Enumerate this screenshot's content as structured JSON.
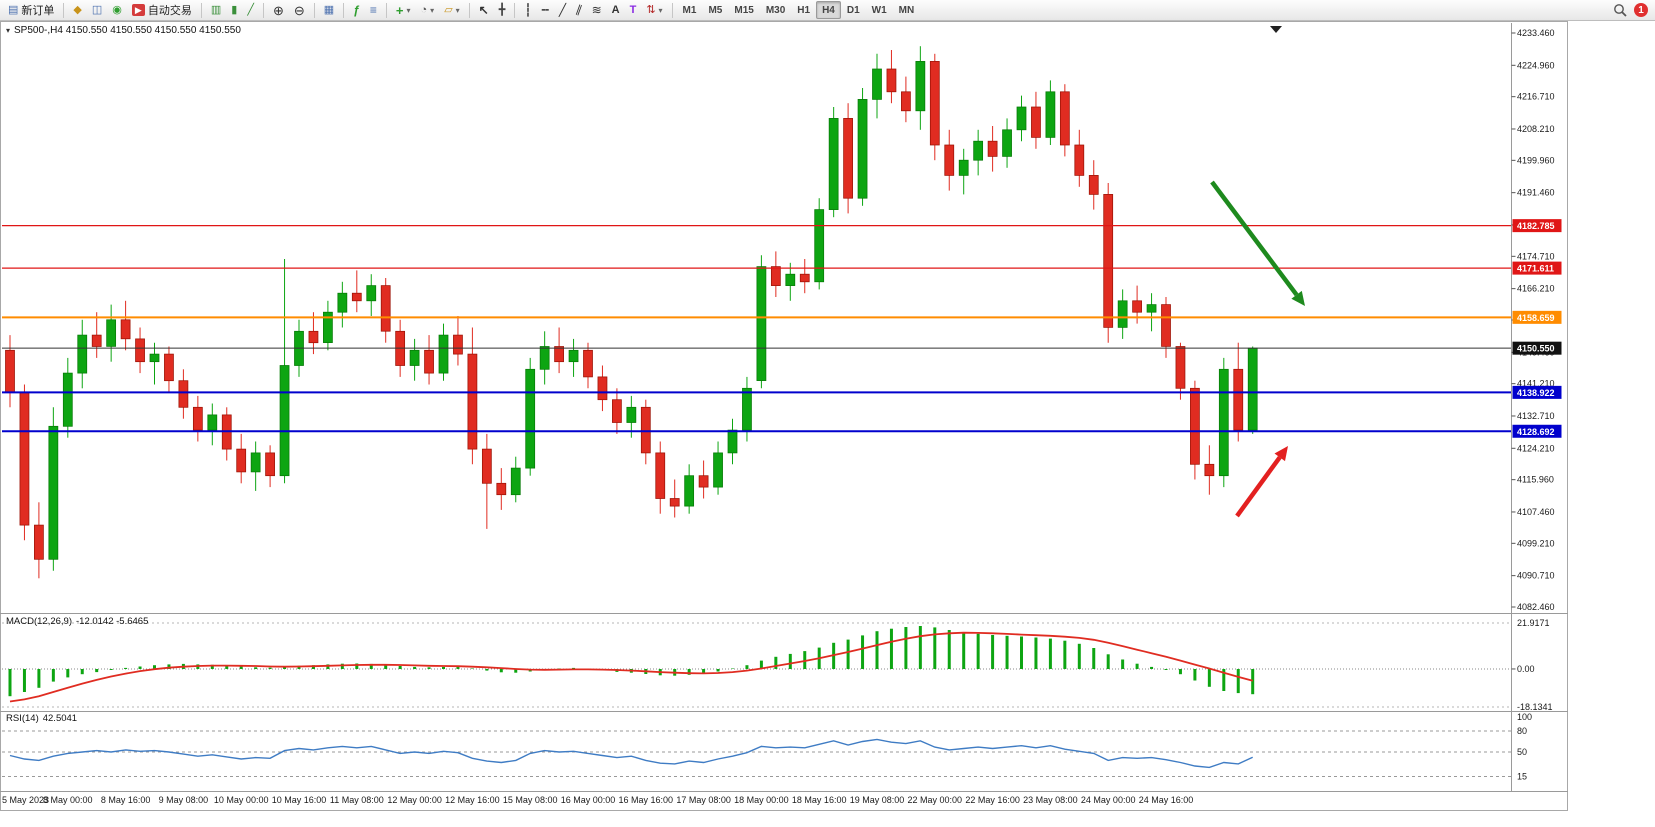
{
  "app": {
    "notification_count": "1"
  },
  "toolbar": {
    "groups": [
      {
        "buttons": [
          {
            "name": "new-order-button",
            "icon": "order-icon",
            "label": "新订单"
          }
        ]
      },
      {
        "buttons": [
          {
            "name": "new-chart-button",
            "icon": "new-chart-icon"
          },
          {
            "name": "profiles-button",
            "icon": "profiles-icon"
          },
          {
            "name": "alerts-button",
            "icon": "alerts-icon"
          },
          {
            "name": "autotrading-button",
            "icon": "autotrading-icon",
            "label": "自动交易"
          }
        ]
      },
      {
        "buttons": [
          {
            "name": "bar-chart-button",
            "icon": "ohlc-bars-icon"
          },
          {
            "name": "candlestick-chart-button",
            "icon": "candles-icon"
          },
          {
            "name": "line-chart-button",
            "icon": "line-chart-icon"
          }
        ]
      },
      {
        "buttons": [
          {
            "name": "zoom-in-button",
            "icon": "zoom-in-icon"
          },
          {
            "name": "zoom-out-button",
            "icon": "zoom-out-icon"
          }
        ]
      },
      {
        "buttons": [
          {
            "name": "tile-windows-button",
            "icon": "tile-windows-icon"
          }
        ]
      },
      {
        "buttons": [
          {
            "name": "indicators-button",
            "icon": "indicators-icon"
          },
          {
            "name": "objects-list-button",
            "icon": "objects-list-icon"
          }
        ]
      },
      {
        "buttons": [
          {
            "name": "add-indicator-button",
            "icon": "plus-icon",
            "caret": true
          },
          {
            "name": "periods-button",
            "icon": "clock-icon",
            "caret": true
          },
          {
            "name": "templates-button",
            "icon": "template-icon",
            "caret": true
          }
        ]
      },
      {
        "buttons": [
          {
            "name": "cursor-button",
            "icon": "cursor-icon"
          },
          {
            "name": "crosshair-button",
            "icon": "crosshair-icon"
          }
        ]
      },
      {
        "buttons": [
          {
            "name": "vertical-line-button",
            "icon": "vertical-line-icon"
          },
          {
            "name": "horizontal-line-button",
            "icon": "horizontal-line-icon"
          },
          {
            "name": "trendline-button",
            "icon": "trendline-icon"
          },
          {
            "name": "channel-button",
            "icon": "channel-icon"
          },
          {
            "name": "fibonacci-button",
            "icon": "fibonacci-icon"
          },
          {
            "name": "text-button",
            "icon": "text-icon"
          },
          {
            "name": "label-button",
            "icon": "label-icon"
          },
          {
            "name": "arrows-button",
            "icon": "arrow-objects-icon",
            "caret": true
          }
        ]
      },
      {
        "buttons": [
          {
            "name": "timeframe-m1",
            "label": "M1"
          },
          {
            "name": "timeframe-m5",
            "label": "M5"
          },
          {
            "name": "timeframe-m15",
            "label": "M15"
          },
          {
            "name": "timeframe-m30",
            "label": "M30"
          },
          {
            "name": "timeframe-h1",
            "label": "H1"
          },
          {
            "name": "timeframe-h4",
            "label": "H4",
            "active": true
          },
          {
            "name": "timeframe-d1",
            "label": "D1"
          },
          {
            "name": "timeframe-w1",
            "label": "W1"
          },
          {
            "name": "timeframe-mn",
            "label": "MN"
          }
        ]
      }
    ]
  },
  "chart": {
    "title": "SP500-,H4  4150.550 4150.550 4150.550 4150.550",
    "symbol": "SP500-",
    "timeframe": "H4",
    "price_scale_labels": [
      "4233.460",
      "4224.960",
      "4216.710",
      "4208.210",
      "4199.960",
      "4191.460",
      "4182.960",
      "4174.710",
      "4166.210",
      "4157.960",
      "4149.460",
      "4141.210",
      "4132.710",
      "4124.210",
      "4115.960",
      "4107.460",
      "4099.210",
      "4090.710",
      "4082.460"
    ],
    "price_lines": [
      {
        "value": 4182.785,
        "label": "4182.785",
        "color": "#e01616",
        "width": 1.2
      },
      {
        "value": 4171.611,
        "label": "4171.611",
        "color": "#e01616",
        "width": 1.2
      },
      {
        "value": 4158.659,
        "label": "4158.659",
        "color": "#ff8c00",
        "width": 2
      },
      {
        "value": 4150.55,
        "label": "4150.550",
        "color": "#333333",
        "badge": "#111111",
        "width": 1
      },
      {
        "value": 4138.922,
        "label": "4138.922",
        "color": "#0000cd",
        "width": 2
      },
      {
        "value": 4128.692,
        "label": "4128.692",
        "color": "#0000cd",
        "width": 2
      }
    ],
    "arrows": [
      {
        "name": "bearish-trend-arrow",
        "color": "#1e8a1e",
        "from": [
          1212,
          161
        ],
        "to": [
          1305,
          285
        ]
      },
      {
        "name": "bullish-bounce-arrow",
        "color": "#e32020",
        "from": [
          1237,
          495
        ],
        "to": [
          1288,
          425
        ]
      }
    ],
    "time_labels": [
      "5 May 2023",
      "8 May 00:00",
      "8 May 16:00",
      "9 May 08:00",
      "10 May 00:00",
      "10 May 16:00",
      "11 May 08:00",
      "12 May 00:00",
      "12 May 16:00",
      "15 May 08:00",
      "16 May 00:00",
      "16 May 16:00",
      "17 May 08:00",
      "18 May 00:00",
      "18 May 16:00",
      "19 May 08:00",
      "22 May 00:00",
      "22 May 16:00",
      "23 May 08:00",
      "24 May 00:00",
      "24 May 16:00"
    ]
  },
  "chart_data": {
    "type": "candlestick",
    "symbol": "SP500-",
    "period": "H4",
    "ylim": [
      4082.46,
      4233.46
    ],
    "up_color": "#0da512",
    "down_color": "#e02c21",
    "ohlc": [
      [
        4150,
        4154,
        4135,
        4139
      ],
      [
        4139,
        4141,
        4100,
        4104
      ],
      [
        4104,
        4110,
        4090,
        4095
      ],
      [
        4095,
        4135,
        4092,
        4130
      ],
      [
        4130,
        4148,
        4127,
        4144
      ],
      [
        4144,
        4158,
        4140,
        4154
      ],
      [
        4154,
        4160,
        4148,
        4151
      ],
      [
        4151,
        4162,
        4147,
        4158
      ],
      [
        4158,
        4163,
        4150,
        4153
      ],
      [
        4153,
        4156,
        4144,
        4147
      ],
      [
        4147,
        4152,
        4141,
        4149
      ],
      [
        4149,
        4151,
        4139,
        4142
      ],
      [
        4142,
        4145,
        4132,
        4135
      ],
      [
        4135,
        4138,
        4126,
        4129
      ],
      [
        4129,
        4136,
        4125,
        4133
      ],
      [
        4133,
        4135,
        4121,
        4124
      ],
      [
        4124,
        4128,
        4115,
        4118
      ],
      [
        4118,
        4126,
        4113,
        4123
      ],
      [
        4123,
        4125,
        4114,
        4117
      ],
      [
        4117,
        4174,
        4115,
        4146
      ],
      [
        4146,
        4158,
        4143,
        4155
      ],
      [
        4155,
        4160,
        4149,
        4152
      ],
      [
        4152,
        4163,
        4150,
        4160
      ],
      [
        4160,
        4168,
        4156,
        4165
      ],
      [
        4165,
        4171,
        4160,
        4163
      ],
      [
        4163,
        4170,
        4159,
        4167
      ],
      [
        4167,
        4169,
        4152,
        4155
      ],
      [
        4155,
        4158,
        4143,
        4146
      ],
      [
        4146,
        4153,
        4142,
        4150
      ],
      [
        4150,
        4154,
        4141,
        4144
      ],
      [
        4144,
        4157,
        4142,
        4154
      ],
      [
        4154,
        4159,
        4146,
        4149
      ],
      [
        4149,
        4156,
        4120,
        4124
      ],
      [
        4124,
        4128,
        4103,
        4115
      ],
      [
        4115,
        4119,
        4108,
        4112
      ],
      [
        4112,
        4122,
        4110,
        4119
      ],
      [
        4119,
        4148,
        4117,
        4145
      ],
      [
        4145,
        4155,
        4141,
        4151
      ],
      [
        4151,
        4156,
        4144,
        4147
      ],
      [
        4147,
        4153,
        4143,
        4150
      ],
      [
        4150,
        4152,
        4140,
        4143
      ],
      [
        4143,
        4146,
        4134,
        4137
      ],
      [
        4137,
        4140,
        4128,
        4131
      ],
      [
        4131,
        4138,
        4127,
        4135
      ],
      [
        4135,
        4137,
        4120,
        4123
      ],
      [
        4123,
        4126,
        4107,
        4111
      ],
      [
        4111,
        4116,
        4106,
        4109
      ],
      [
        4109,
        4120,
        4107,
        4117
      ],
      [
        4117,
        4121,
        4111,
        4114
      ],
      [
        4114,
        4126,
        4112,
        4123
      ],
      [
        4123,
        4132,
        4120,
        4129
      ],
      [
        4129,
        4143,
        4126,
        4140
      ],
      [
        4142,
        4175,
        4140,
        4172
      ],
      [
        4172,
        4176,
        4164,
        4167
      ],
      [
        4167,
        4173,
        4163,
        4170
      ],
      [
        4170,
        4174,
        4165,
        4168
      ],
      [
        4168,
        4190,
        4166,
        4187
      ],
      [
        4187,
        4214,
        4185,
        4211
      ],
      [
        4211,
        4215,
        4186,
        4190
      ],
      [
        4190,
        4219,
        4188,
        4216
      ],
      [
        4216,
        4228,
        4211,
        4224
      ],
      [
        4224,
        4229,
        4215,
        4218
      ],
      [
        4218,
        4222,
        4210,
        4213
      ],
      [
        4213,
        4230,
        4208,
        4226
      ],
      [
        4226,
        4228,
        4200,
        4204
      ],
      [
        4204,
        4208,
        4192,
        4196
      ],
      [
        4196,
        4203,
        4191,
        4200
      ],
      [
        4200,
        4208,
        4196,
        4205
      ],
      [
        4205,
        4209,
        4197,
        4201
      ],
      [
        4201,
        4211,
        4198,
        4208
      ],
      [
        4208,
        4217,
        4205,
        4214
      ],
      [
        4214,
        4218,
        4203,
        4206
      ],
      [
        4206,
        4221,
        4204,
        4218
      ],
      [
        4218,
        4220,
        4201,
        4204
      ],
      [
        4204,
        4208,
        4193,
        4196
      ],
      [
        4196,
        4200,
        4187,
        4191
      ],
      [
        4191,
        4194,
        4152,
        4156
      ],
      [
        4156,
        4166,
        4153,
        4163
      ],
      [
        4163,
        4167,
        4157,
        4160
      ],
      [
        4160,
        4165,
        4155,
        4162
      ],
      [
        4162,
        4164,
        4148,
        4151
      ],
      [
        4151,
        4152,
        4137,
        4140
      ],
      [
        4140,
        4142,
        4116,
        4120
      ],
      [
        4120,
        4125,
        4112,
        4117
      ],
      [
        4117,
        4148,
        4114,
        4145
      ],
      [
        4145,
        4152,
        4126,
        4129
      ],
      [
        4129,
        4151,
        4128,
        4150.55
      ]
    ],
    "indicators": {
      "macd": {
        "label": "MACD(12,26,9)",
        "values": "-12.0142 -5.6465",
        "ylim": [
          -18.1341,
          21.9171
        ],
        "scale": {
          "max": "21.9171",
          "zero": "0.00",
          "min": "-18.1341"
        },
        "histogram": [
          -13,
          -11,
          -9,
          -6,
          -4,
          -2.5,
          -1.5,
          -0.5,
          0.5,
          1.2,
          1.8,
          2.2,
          2.4,
          2.2,
          2,
          1.6,
          1.2,
          0.8,
          0.6,
          1,
          1.5,
          1.8,
          2.2,
          2.5,
          2.6,
          2.4,
          2,
          1.4,
          1,
          0.8,
          1,
          1,
          0.2,
          -0.8,
          -1.6,
          -1.8,
          -1.2,
          -0.4,
          0.2,
          0.5,
          0.2,
          -0.5,
          -1.4,
          -1.8,
          -2.4,
          -3,
          -3.2,
          -2.8,
          -2.2,
          -1.2,
          0.2,
          1.8,
          4,
          5.8,
          7.2,
          8.5,
          10.2,
          12.5,
          14,
          16,
          18,
          19.2,
          20,
          20.5,
          19.8,
          18.6,
          17.5,
          16.8,
          16.2,
          15.8,
          15.5,
          15,
          14.5,
          13.5,
          12,
          10,
          7,
          4.5,
          2.5,
          1,
          -0.5,
          -2.5,
          -5.5,
          -8.5,
          -10.5,
          -11.5,
          -12.0142
        ],
        "signal": [
          -15.5,
          -14.5,
          -13,
          -11,
          -9,
          -7,
          -5.2,
          -3.6,
          -2.2,
          -1,
          -0.1,
          0.6,
          1.1,
          1.4,
          1.6,
          1.6,
          1.5,
          1.4,
          1.2,
          1.1,
          1.2,
          1.3,
          1.5,
          1.7,
          1.9,
          2,
          2,
          1.9,
          1.7,
          1.5,
          1.4,
          1.3,
          1.1,
          0.8,
          0.4,
          0,
          -0.3,
          -0.4,
          -0.3,
          -0.2,
          -0.2,
          -0.3,
          -0.5,
          -0.8,
          -1.1,
          -1.5,
          -1.8,
          -2,
          -2.1,
          -1.9,
          -1.5,
          -0.8,
          0.2,
          1.4,
          2.6,
          3.8,
          5.1,
          6.6,
          8.1,
          9.7,
          11.4,
          13,
          14.4,
          15.6,
          16.5,
          17,
          17.3,
          17.2,
          17,
          16.7,
          16.4,
          16.1,
          15.8,
          15.4,
          14.8,
          13.9,
          12.5,
          10.9,
          9.2,
          7.5,
          5.8,
          4,
          2.1,
          0.2,
          -1.8,
          -3.8,
          -5.6465
        ]
      },
      "rsi": {
        "label": "RSI(14)",
        "value": "42.5041",
        "levels": [
          100,
          80,
          50,
          15
        ],
        "series": [
          45,
          40,
          38,
          44,
          48,
          50,
          52,
          50,
          53,
          51,
          52,
          50,
          47,
          44,
          46,
          43,
          40,
          42,
          41,
          52,
          55,
          53,
          56,
          58,
          56,
          58,
          53,
          48,
          50,
          48,
          51,
          49,
          41,
          37,
          35,
          38,
          48,
          52,
          50,
          51,
          48,
          45,
          42,
          44,
          38,
          34,
          33,
          37,
          35,
          40,
          44,
          49,
          58,
          56,
          57,
          56,
          61,
          66,
          60,
          65,
          68,
          64,
          62,
          66,
          57,
          53,
          55,
          57,
          55,
          57,
          59,
          56,
          59,
          54,
          51,
          48,
          38,
          42,
          41,
          42,
          39,
          35,
          30,
          28,
          35,
          33,
          42.5041
        ]
      }
    }
  }
}
